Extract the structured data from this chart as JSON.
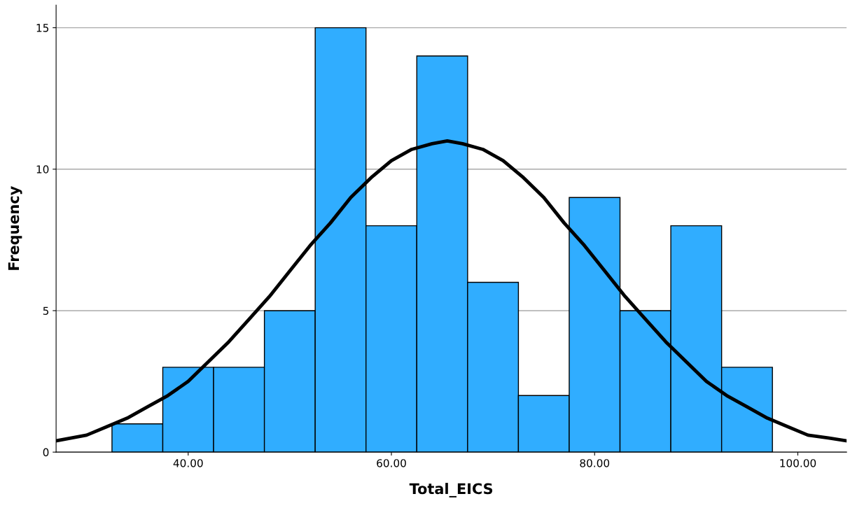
{
  "chart_data": {
    "type": "histogram",
    "xlabel": "Total_EICS",
    "ylabel": "Frequency",
    "xlim": [
      27,
      104.8
    ],
    "ylim": [
      0,
      15.8
    ],
    "xticks": [
      {
        "value": 40,
        "label": "40.00"
      },
      {
        "value": 60,
        "label": "60.00"
      },
      {
        "value": 80,
        "label": "80.00"
      },
      {
        "value": 100,
        "label": "100.00"
      }
    ],
    "yticks": [
      0,
      5,
      10,
      15
    ],
    "grid": "y",
    "legend": false,
    "series": [
      {
        "color": "#30adff",
        "bins": [
          32.5,
          37.5,
          42.5,
          47.5,
          52.5,
          57.5,
          62.5,
          67.5,
          72.5,
          77.5,
          82.5,
          87.5,
          92.5,
          97.5
        ],
        "values": [
          1,
          3,
          3,
          5,
          15,
          8,
          14,
          6,
          2,
          9,
          5,
          8,
          3
        ]
      },
      {
        "type": "line",
        "color": "#000000",
        "marker": "none",
        "line_style": "solid",
        "x": [
          27,
          30,
          32,
          34,
          36,
          38,
          40,
          42,
          44,
          46,
          48,
          50,
          52,
          54,
          56,
          58,
          60,
          62,
          64,
          65.5,
          67,
          69,
          71,
          73,
          75,
          77,
          79,
          81,
          83,
          85,
          87,
          89,
          91,
          93,
          95,
          97,
          99,
          101,
          103,
          104.8
        ],
        "values": [
          0.4,
          0.6,
          0.9,
          1.2,
          1.6,
          2.0,
          2.5,
          3.2,
          3.9,
          4.7,
          5.5,
          6.4,
          7.3,
          8.1,
          9.0,
          9.7,
          10.3,
          10.7,
          10.9,
          11.0,
          10.9,
          10.7,
          10.3,
          9.7,
          9.0,
          8.1,
          7.3,
          6.4,
          5.5,
          4.7,
          3.9,
          3.2,
          2.5,
          2.0,
          1.6,
          1.2,
          0.9,
          0.6,
          0.5,
          0.4
        ]
      }
    ]
  }
}
